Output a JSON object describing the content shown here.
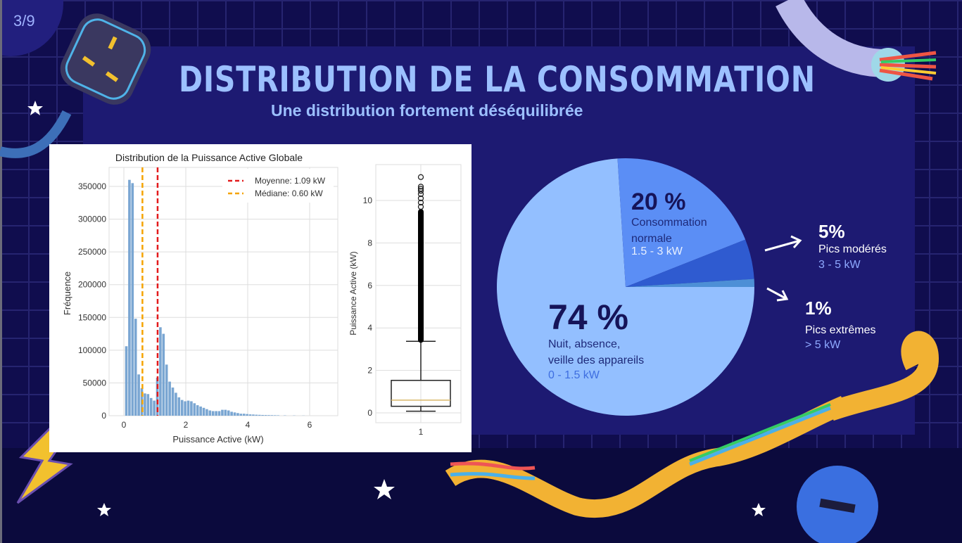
{
  "slide": {
    "page": "3/9",
    "title": "DISTRIBUTION DE LA CONSOMMATION",
    "subtitle": "Une distribution fortement déséquilibrée"
  },
  "colors": {
    "background": "#100d4e",
    "panel": "#1d1a72",
    "title": "#9cc0ff",
    "slice_night": "#93bfff",
    "slice_normal": "#5b8ef5",
    "slice_moderate": "#2f5bd0",
    "slice_extreme": "#4d8fd6"
  },
  "chart_data": [
    {
      "type": "bar",
      "title": "Distribution de la Puissance Active Globale",
      "xlabel": "Puissance Active (kW)",
      "ylabel": "Fréquence",
      "xlim": [
        -0.6,
        6.6
      ],
      "ylim": [
        0,
        380000
      ],
      "xticks": [
        "0",
        "2",
        "4",
        "6"
      ],
      "yticks": [
        "0",
        "50000",
        "100000",
        "150000",
        "200000",
        "250000",
        "300000",
        "350000"
      ],
      "bin_width": 0.1,
      "x": [
        0.08,
        0.18,
        0.28,
        0.38,
        0.48,
        0.58,
        0.68,
        0.78,
        0.88,
        0.98,
        1.08,
        1.18,
        1.28,
        1.38,
        1.48,
        1.58,
        1.68,
        1.78,
        1.88,
        1.98,
        2.08,
        2.18,
        2.28,
        2.38,
        2.48,
        2.58,
        2.68,
        2.78,
        2.88,
        2.98,
        3.08,
        3.18,
        3.28,
        3.38,
        3.48,
        3.58,
        3.68,
        3.78,
        3.88,
        3.98,
        4.08,
        4.18,
        4.28,
        4.38,
        4.48,
        4.58,
        4.68,
        4.78,
        4.88,
        4.98,
        5.2,
        5.5,
        5.8
      ],
      "values": [
        106000,
        360000,
        355000,
        148000,
        63000,
        42000,
        34000,
        33000,
        27000,
        23000,
        58000,
        135000,
        125000,
        78000,
        52000,
        43000,
        35000,
        28000,
        24000,
        22000,
        23000,
        22000,
        19000,
        16000,
        14000,
        12000,
        10000,
        8000,
        7000,
        7000,
        7000,
        9000,
        9000,
        8000,
        6000,
        5000,
        4000,
        3000,
        3000,
        2500,
        2000,
        1800,
        1500,
        1300,
        1100,
        1000,
        900,
        800,
        700,
        600,
        400,
        300,
        200
      ],
      "lines": [
        {
          "label": "Moyenne: 1.09 kW",
          "x": 1.09,
          "color": "#e31a1c"
        },
        {
          "label": "Médiane: 0.60 kW",
          "x": 0.6,
          "color": "#f5a300"
        }
      ],
      "legend": "top-right",
      "grid": true
    },
    {
      "type": "box",
      "ylabel": "Puissance Active (kW)",
      "xticks": [
        "1"
      ],
      "yticks": [
        "0",
        "2",
        "4",
        "6",
        "8",
        "10"
      ],
      "ylim": [
        -0.5,
        11.6
      ],
      "whisker_low": 0.08,
      "q1": 0.31,
      "median": 0.6,
      "q3": 1.53,
      "whisker_high": 3.37,
      "outliers_dense_range": [
        3.3,
        9.6
      ],
      "outliers_sparse": [
        9.7,
        9.9,
        10.1,
        10.3,
        10.45,
        10.55,
        10.65,
        11.1
      ]
    },
    {
      "type": "pie",
      "slices": [
        {
          "pct_label": "74 %",
          "value": 74,
          "label": "Nuit, absence,",
          "label2": "veille des appareils",
          "range": "0 - 1.5 kW"
        },
        {
          "pct_label": "20 %",
          "value": 20,
          "label": "Consommation",
          "label2": "normale",
          "range": "1.5 - 3 kW"
        },
        {
          "pct_label": "5%",
          "value": 5,
          "label": "Pics modérés",
          "range": "3 - 5 kW"
        },
        {
          "pct_label": "1%",
          "value": 1,
          "label": "Pics extrêmes",
          "range": "> 5 kW"
        }
      ]
    }
  ]
}
